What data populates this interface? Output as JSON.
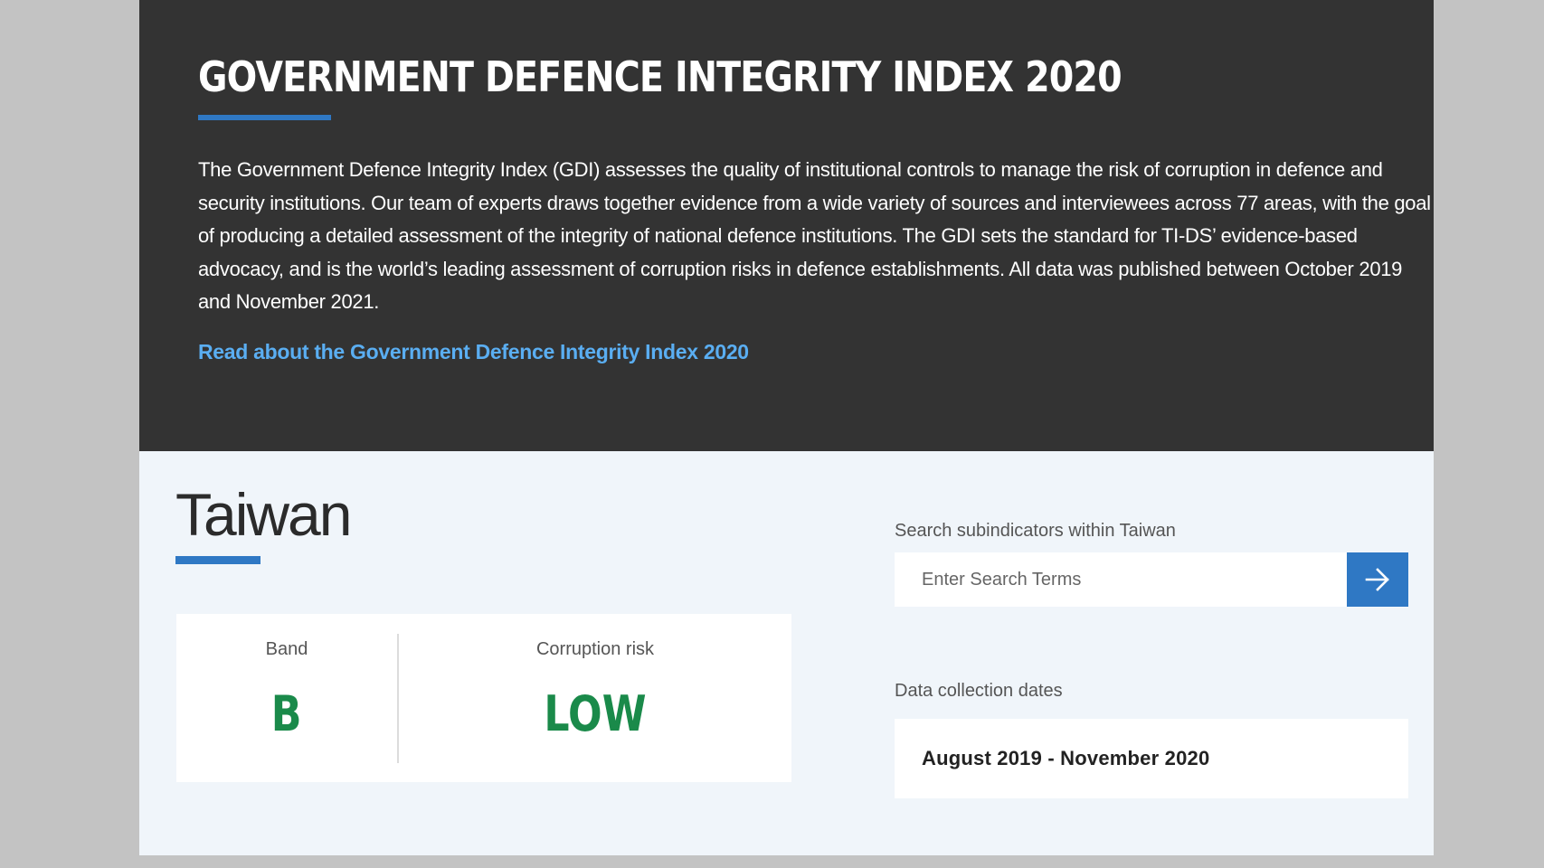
{
  "hero": {
    "title": "GOVERNMENT DEFENCE INTEGRITY INDEX 2020",
    "description": "The Government Defence Integrity Index (GDI) assesses the quality of institutional controls to manage the risk of corruption in defence and security institutions. Our team of experts draws together evidence from a wide variety of sources and interviewees across 77 areas, with the goal of producing a detailed assessment of the integrity of national defence institutions. The GDI sets the standard for TI-DS’ evidence-based advocacy, and is the world’s leading assessment of corruption risks in defence establishments. All data was published between October 2019 and November 2021.",
    "link_label": "Read about the Government Defence Integrity Index 2020"
  },
  "country": {
    "name": "Taiwan"
  },
  "scores": {
    "band_label": "Band",
    "band_value": "B",
    "risk_label": "Corruption risk",
    "risk_value": "LOW"
  },
  "search": {
    "label": "Search subindicators within Taiwan",
    "placeholder": "Enter Search Terms",
    "value": "",
    "button_icon": "arrow-right-icon"
  },
  "dates": {
    "label": "Data collection dates",
    "value": "August 2019 - November 2020"
  },
  "colors": {
    "accent": "#2f78c4",
    "link": "#5aaef2",
    "risk_low": "#1a8a4a",
    "hero_bg": "#333333",
    "page_bg": "#f0f5fa"
  }
}
